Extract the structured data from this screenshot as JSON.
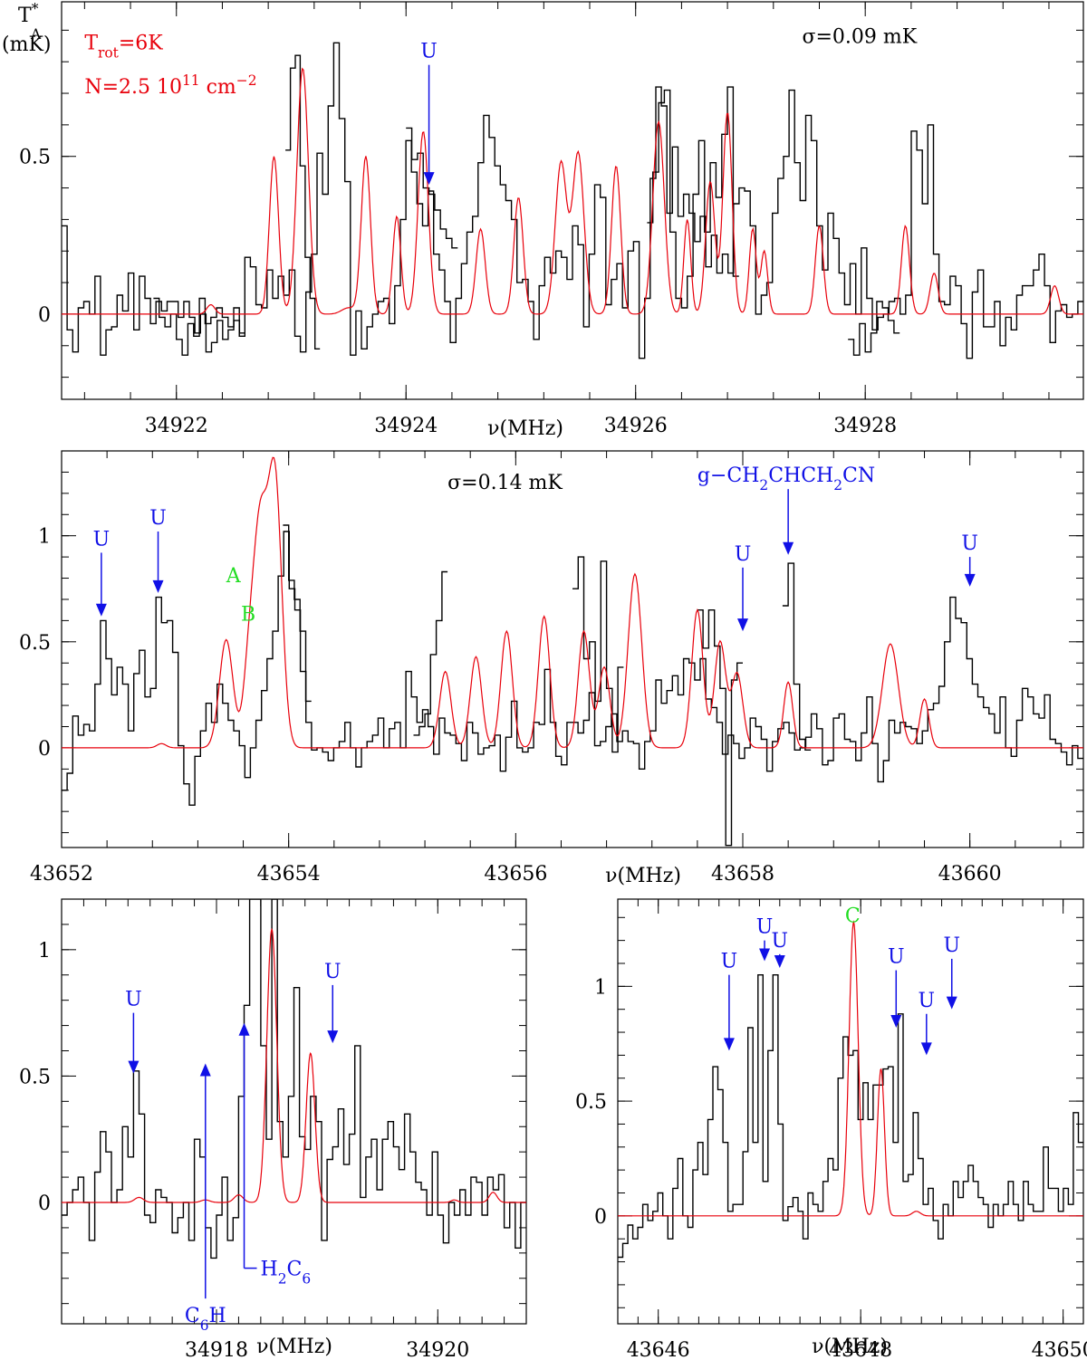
{
  "colors": {
    "observed": "#000000",
    "model": "#e8000b",
    "annotation_blue": "#1010e6",
    "annotation_green": "#22dd22"
  },
  "chart_data": [
    {
      "id": "p1",
      "type": "line",
      "xlim": [
        34921.0,
        34929.9
      ],
      "ylim": [
        -0.27,
        0.99
      ],
      "xticks": [
        34922,
        34924,
        34926,
        34928
      ],
      "yticks": [
        0,
        0.5
      ],
      "minor_xstep": 0.4,
      "minor_ystep": 0.1,
      "xlabel": "ν(MHz)",
      "ylabel": [
        "T",
        "*",
        "A",
        "(mK)"
      ],
      "texts": [
        {
          "text": "σ=0.09  mK",
          "x": 34927.45,
          "y": 0.86,
          "color": "black"
        },
        {
          "text": "T",
          "sub": "rot",
          "after": "=6K",
          "x": 34921.2,
          "y": 0.84,
          "color": "red"
        },
        {
          "text": "N=2.5  10",
          "sup": "11",
          "after": "  cm",
          "sup2": "−2",
          "x": 34921.2,
          "y": 0.7,
          "color": "red"
        }
      ],
      "arrows": [
        {
          "label": "U",
          "x": 34924.2,
          "y_tip": 0.41,
          "y_top": 0.79
        }
      ],
      "model_lines": [
        [
          34922.3,
          0.03,
          0.035
        ],
        [
          34922.85,
          0.5,
          0.04
        ],
        [
          34923.1,
          0.78,
          0.05
        ],
        [
          34923.5,
          0.02,
          0.06
        ],
        [
          34923.65,
          0.5,
          0.04
        ],
        [
          34923.92,
          0.31,
          0.035
        ],
        [
          34924.15,
          0.58,
          0.045
        ],
        [
          34924.65,
          0.27,
          0.04
        ],
        [
          34924.98,
          0.37,
          0.04
        ],
        [
          34925.35,
          0.48,
          0.05
        ],
        [
          34925.5,
          0.51,
          0.05
        ],
        [
          34925.83,
          0.47,
          0.04
        ],
        [
          34926.2,
          0.61,
          0.05
        ],
        [
          34926.45,
          0.3,
          0.03
        ],
        [
          34926.65,
          0.42,
          0.04
        ],
        [
          34926.8,
          0.64,
          0.04
        ],
        [
          34927.02,
          0.27,
          0.03
        ],
        [
          34927.12,
          0.2,
          0.03
        ],
        [
          34927.6,
          0.28,
          0.035
        ],
        [
          34928.35,
          0.28,
          0.035
        ],
        [
          34928.6,
          0.13,
          0.035
        ],
        [
          34929.65,
          0.09,
          0.035
        ]
      ],
      "obs_step": 0.05,
      "obs_bins": [
        0.28,
        -0.05,
        -0.12,
        0.02,
        0.04,
        0.0,
        0.12,
        -0.13,
        -0.05,
        -0.04,
        0.06,
        0.01,
        0.13,
        -0.05,
        0.12,
        0.05,
        -0.03,
        0.04,
        0.01,
        0.04,
        0.04,
        -0.01,
        0.04,
        -0.01,
        -0.06,
        0.0,
        -0.12,
        -0.09,
        -0.02,
        -0.08,
        -0.05,
        0.02,
        -0.07,
        0.18,
        0.15,
        0.03,
        0.02,
        0.14,
        0.05,
        0.12,
        0.06,
        0.14,
        -0.07,
        -0.12,
        0.07,
        0.19,
        0.51,
        0.38,
        0.66,
        0.86,
        0.62,
        0.42,
        -0.13,
        0.01,
        -0.11,
        -0.04,
        0.0,
        0.04,
        0.05,
        -0.03,
        0.09,
        0.3,
        0.55,
        0.45,
        0.35,
        0.28,
        0.39,
        0.19,
        0.14,
        0.04,
        -0.09,
        0.05,
        0.16,
        0.26,
        0.31,
        0.48,
        0.63,
        0.56,
        0.47,
        0.41,
        0.36,
        0.3,
        0.1,
        0.11,
        0.04,
        -0.08,
        0.09,
        0.18,
        0.13,
        0.2,
        0.18,
        0.11,
        0.28,
        0.22,
        -0.04,
        0.19,
        0.41,
        0.37,
        0.03,
        0.11,
        0.16,
        0.02,
        0.2,
        0.23,
        -0.14,
        0.05,
        0.43,
        0.72,
        0.66,
        0.32,
        0.53,
        0.31,
        0.38,
        0.32,
        0.23,
        0.31,
        0.15,
        0.25,
        0.13,
        0.19,
        0.13,
        0.35,
        0.4,
        0.39,
        0.28,
        0.0,
        0.06,
        0.1,
        0.32,
        0.43,
        0.5,
        0.71,
        0.48,
        0.36,
        0.63,
        0.55,
        0.28,
        0.14,
        0.32,
        0.24,
        0.13,
        0.03,
        0.16,
        0.0,
        0.21,
        0.05,
        -0.05,
        -0.01,
        0.0,
        0.04,
        0.05,
        0.0,
        0.06,
        0.58,
        0.52,
        0.35,
        0.6,
        0.19,
        0.04,
        0.03,
        0.12,
        0.09,
        -0.03,
        -0.14,
        0.07,
        0.14,
        -0.04,
        -0.04,
        0.04,
        -0.1,
        -0.01,
        -0.05,
        0.06,
        0.09,
        0.09,
        0.14,
        0.19,
        0.09,
        -0.09,
        0.01,
        0.03,
        -0.01,
        0.0,
        0.04
      ],
      "obs_segments": [
        {
          "x0": 34921.8,
          "x1": 34922.6,
          "values": [
            0.05,
            -0.01,
            -0.04,
            0.0,
            -0.08,
            -0.13,
            -0.03,
            -0.07,
            0.05,
            -0.03,
            -0.01,
            0.02,
            -0.01,
            -0.04,
            -0.02,
            -0.06
          ]
        },
        {
          "x0": 34922.95,
          "x1": 34923.25,
          "values": [
            0.52,
            0.78,
            0.82,
            0.47,
            0.18,
            0.05,
            -0.11
          ]
        },
        {
          "x0": 34924.0,
          "x1": 34924.45,
          "values": [
            0.59,
            0.49,
            0.51,
            0.4,
            0.38,
            0.33,
            0.27,
            0.24,
            0.21
          ]
        },
        {
          "x0": 34926.1,
          "x1": 34926.9,
          "values": [
            0.29,
            0.45,
            0.67,
            0.71,
            0.26,
            0.05,
            0.02,
            0.12,
            0.38,
            0.55,
            0.26,
            0.48,
            0.37,
            0.57,
            0.72,
            0.12
          ]
        },
        {
          "x0": 34927.85,
          "x1": 34928.3,
          "values": [
            -0.08,
            -0.13,
            -0.03,
            -0.12,
            -0.06,
            0.04,
            0.02,
            -0.02,
            -0.06
          ]
        }
      ]
    },
    {
      "id": "p2",
      "type": "line",
      "xlim": [
        43652.0,
        43661.0
      ],
      "ylim": [
        -0.47,
        1.4
      ],
      "xticks": [
        43652,
        43654,
        43656,
        43658,
        43660
      ],
      "yticks": [
        0,
        0.5,
        1
      ],
      "minor_xstep": 0.4,
      "minor_ystep": 0.1,
      "xlabel": "ν(MHz)",
      "texts": [
        {
          "text": "σ=0.14  mK",
          "x": 43655.4,
          "y": 1.22,
          "color": "black"
        },
        {
          "text": "A",
          "x": 43653.45,
          "y": 0.78,
          "color": "green"
        },
        {
          "text": "B",
          "x": 43653.58,
          "y": 0.6,
          "color": "green"
        }
      ],
      "arrows": [
        {
          "label": "U",
          "x": 43652.35,
          "y_tip": 0.62,
          "y_top": 0.92
        },
        {
          "label": "U",
          "x": 43652.85,
          "y_tip": 0.73,
          "y_top": 1.02
        },
        {
          "label": "U",
          "x": 43658.0,
          "y_tip": 0.55,
          "y_top": 0.85
        },
        {
          "label": "U",
          "x": 43660.0,
          "y_tip": 0.76,
          "y_top": 0.9
        },
        {
          "label": "g−CH",
          "sub": "2",
          "after": "CHCH",
          "sub2": "2",
          "after2": "CN",
          "x": 43658.4,
          "y_tip": 0.91,
          "y_top": 1.22,
          "label_x": 43657.6
        }
      ],
      "model_lines": [
        [
          43652.88,
          0.02,
          0.04
        ],
        [
          43653.45,
          0.51,
          0.06
        ],
        [
          43653.65,
          0.35,
          0.05
        ],
        [
          43653.75,
          1.0,
          0.06
        ],
        [
          43653.88,
          1.25,
          0.06
        ],
        [
          43655.38,
          0.36,
          0.05
        ],
        [
          43655.65,
          0.43,
          0.05
        ],
        [
          43655.92,
          0.55,
          0.05
        ],
        [
          43656.25,
          0.62,
          0.05
        ],
        [
          43656.6,
          0.55,
          0.05
        ],
        [
          43656.78,
          0.38,
          0.05
        ],
        [
          43657.05,
          0.82,
          0.06
        ],
        [
          43657.6,
          0.65,
          0.05
        ],
        [
          43657.8,
          0.5,
          0.05
        ],
        [
          43657.95,
          0.35,
          0.05
        ],
        [
          43658.4,
          0.31,
          0.04
        ],
        [
          43659.3,
          0.49,
          0.07
        ],
        [
          43659.6,
          0.23,
          0.04
        ]
      ],
      "obs_step": 0.05,
      "obs_bins": [
        -0.2,
        -0.12,
        0.15,
        0.06,
        0.11,
        0.08,
        0.3,
        0.6,
        0.42,
        0.25,
        0.38,
        0.3,
        0.08,
        0.35,
        0.46,
        0.24,
        0.28,
        0.71,
        0.59,
        0.6,
        0.45,
        0.01,
        -0.17,
        -0.27,
        -0.04,
        0.08,
        0.21,
        0.12,
        0.3,
        0.21,
        0.13,
        0.08,
        0.01,
        -0.14,
        0.0,
        0.13,
        0.27,
        0.42,
        0.55,
        0.81,
        1.02,
        0.75,
        0.65,
        0.36,
        0.12,
        -0.01,
        0.0,
        -0.02,
        -0.06,
        0.0,
        0.03,
        0.12,
        0.0,
        -0.09,
        0.0,
        0.03,
        0.06,
        0.14,
        0.0,
        0.09,
        0.12,
        0.0,
        0.36,
        0.24,
        0.12,
        0.18,
        0.1,
        -0.03,
        0.14,
        0.07,
        0.06,
        0.02,
        -0.06,
        0.12,
        0.07,
        -0.03,
        0.0,
        0.01,
        0.06,
        -0.11,
        0.05,
        0.22,
        0.0,
        -0.02,
        0.0,
        0.12,
        0.11,
        0.37,
        0.12,
        -0.04,
        -0.08,
        0.12,
        0.12,
        0.07,
        0.13,
        0.26,
        0.01,
        0.03,
        0.1,
        0.16,
        0.03,
        0.08,
        0.03,
        0.02,
        -0.1,
        0.03,
        0.08,
        0.32,
        0.21,
        0.27,
        0.34,
        0.25,
        0.42,
        0.4,
        0.32,
        0.42,
        0.23,
        0.19,
        0.12,
        -0.03,
        0.06,
        0.02,
        -0.05,
        0.0,
        0.14,
        0.1,
        0.04,
        -0.11,
        0.03,
        0.09,
        0.12,
        0.07,
        -0.01,
        0.0,
        0.05,
        0.16,
        0.09,
        -0.08,
        -0.06,
        0.14,
        0.16,
        0.04,
        0.03,
        -0.06,
        0.07,
        0.24,
        0.02,
        -0.16,
        -0.06,
        0.13,
        0.07,
        0.12,
        0.1,
        0.09,
        0.02,
        0.08,
        0.18,
        0.21,
        0.29,
        0.5,
        0.71,
        0.61,
        0.59,
        0.42,
        0.3,
        0.24,
        0.19,
        0.16,
        0.07,
        0.24,
        0.0,
        -0.04,
        0.13,
        0.28,
        0.24,
        0.16,
        0.14,
        0.25,
        0.04,
        0.02,
        -0.02,
        -0.08,
        0.01,
        -0.05
      ],
      "obs_segments": [
        {
          "x0": 43653.95,
          "x1": 43654.2,
          "values": [
            1.05,
            0.79,
            0.7,
            0.55,
            0.22
          ]
        },
        {
          "x0": 43655.1,
          "x1": 43655.4,
          "values": [
            0.06,
            0.1,
            0.16,
            0.44,
            0.6,
            0.83
          ]
        },
        {
          "x0": 43656.5,
          "x1": 43656.95,
          "values": [
            0.75,
            0.9,
            0.42,
            0.5,
            0.22,
            0.88,
            0.28,
            -0.02,
            0.38
          ]
        },
        {
          "x0": 43657.6,
          "x1": 43658.0,
          "values": [
            0.65,
            0.47,
            0.65,
            0.48,
            0.28,
            -0.46,
            0.32,
            0.4
          ]
        },
        {
          "x0": 43658.35,
          "x1": 43658.6,
          "values": [
            0.67,
            0.87,
            0.3,
            0.04,
            -0.01
          ]
        }
      ]
    },
    {
      "id": "p3",
      "type": "line",
      "xlim": [
        34916.6,
        34920.8
      ],
      "ylim": [
        -0.48,
        1.2
      ],
      "xticks": [
        34918,
        34920
      ],
      "yticks": [
        0,
        0.5,
        1
      ],
      "minor_xstep": 0.2,
      "minor_ystep": 0.1,
      "xlabel": "ν(MHz)",
      "arrows": [
        {
          "label": "U",
          "x": 34917.25,
          "y_tip": 0.51,
          "y_top": 0.75
        },
        {
          "label": "U",
          "x": 34919.05,
          "y_tip": 0.63,
          "y_top": 0.86
        }
      ],
      "up_arrows": [
        {
          "label": "C",
          "sub": "6",
          "after": "H",
          "x": 34917.9,
          "y_base": -0.38,
          "y_tip": 0.55,
          "label_dx": -18,
          "label_dy": 26
        },
        {
          "label": "H",
          "sub": "2",
          "after": "C",
          "sub2": "6",
          "x": 34918.25,
          "y_base": -0.26,
          "y_tip": 0.71,
          "label_dx": 18,
          "label_dy": 8
        }
      ],
      "model_lines": [
        [
          34917.3,
          0.02,
          0.04
        ],
        [
          34917.9,
          0.01,
          0.04
        ],
        [
          34918.2,
          0.03,
          0.04
        ],
        [
          34918.5,
          1.08,
          0.045
        ],
        [
          34918.85,
          0.59,
          0.04
        ],
        [
          34920.15,
          0.01,
          0.03
        ],
        [
          34920.5,
          0.04,
          0.035
        ]
      ],
      "obs_step": 0.05,
      "obs_bins": [
        -0.05,
        0.0,
        0.05,
        0.1,
        0.0,
        -0.15,
        0.12,
        0.28,
        0.2,
        0.0,
        0.05,
        0.3,
        0.18,
        0.52,
        0.35,
        -0.05,
        -0.08,
        0.05,
        0.02,
        0.0,
        -0.12,
        -0.06,
        0.0,
        -0.15,
        0.25,
        0.18,
        -0.1,
        -0.22,
        -0.05,
        0.1,
        -0.15,
        -0.06,
        0.42,
        0.78,
        1.2,
        1.2,
        0.62,
        0.25,
        1.2,
        0.32,
        0.18,
        0.42,
        0.85,
        0.26,
        0.21,
        0.42,
        0.32,
        -0.15,
        0.17,
        0.22,
        0.37,
        0.15,
        0.27,
        0.62,
        0.02,
        0.18,
        0.25,
        0.05,
        0.25,
        0.32,
        0.22,
        0.13,
        0.35,
        0.2,
        0.08,
        0.05,
        -0.05,
        0.2,
        -0.05,
        -0.16,
        0.0,
        -0.05,
        0.05,
        -0.05,
        0.1,
        0.08,
        -0.05,
        0.1,
        0.05,
        0.11,
        -0.1,
        0.0,
        -0.18,
        0.0
      ]
    },
    {
      "id": "p4",
      "type": "line",
      "xlim": [
        43645.6,
        43650.2
      ],
      "ylim": [
        -0.47,
        1.38
      ],
      "xticks": [
        43646,
        43648,
        43650
      ],
      "yticks": [
        0,
        0.5,
        1
      ],
      "minor_xstep": 0.2,
      "minor_ystep": 0.1,
      "xlabel": "ν(MHz)",
      "texts": [
        {
          "text": "C",
          "x": 43647.92,
          "y": 1.28,
          "color": "green",
          "anchor": "middle"
        }
      ],
      "arrows": [
        {
          "label": "U",
          "x": 43646.7,
          "y_tip": 0.72,
          "y_top": 1.05
        },
        {
          "label": "U",
          "x": 43647.05,
          "y_tip": 1.11,
          "y_top": 1.2
        },
        {
          "label": "U",
          "x": 43647.2,
          "y_tip": 1.08,
          "y_top": 1.14
        },
        {
          "label": "U",
          "x": 43648.35,
          "y_tip": 0.82,
          "y_top": 1.07
        },
        {
          "label": "U",
          "x": 43648.65,
          "y_tip": 0.7,
          "y_top": 0.88
        },
        {
          "label": "U",
          "x": 43648.9,
          "y_tip": 0.9,
          "y_top": 1.12
        }
      ],
      "model_lines": [
        [
          43647.93,
          1.28,
          0.045
        ],
        [
          43648.2,
          0.64,
          0.035
        ],
        [
          43648.55,
          0.02,
          0.04
        ]
      ],
      "obs_step": 0.05,
      "obs_bins": [
        -0.18,
        -0.12,
        -0.04,
        -0.1,
        -0.05,
        0.05,
        -0.02,
        0.02,
        0.1,
        0.0,
        -0.1,
        0.12,
        0.25,
        0.0,
        -0.05,
        0.2,
        0.32,
        0.18,
        0.42,
        0.65,
        0.55,
        0.32,
        0.02,
        0.05,
        0.05,
        0.28,
        0.82,
        0.32,
        1.05,
        0.15,
        0.72,
        1.05,
        0.4,
        -0.02,
        0.04,
        0.08,
        0.02,
        -0.1,
        0.1,
        0.05,
        0.02,
        0.15,
        0.25,
        0.2,
        0.6,
        0.78,
        0.7,
        0.72,
        0.42,
        0.58,
        0.42,
        0.57,
        0.57,
        0.64,
        0.65,
        0.32,
        0.88,
        0.15,
        0.18,
        0.45,
        0.25,
        0.05,
        0.12,
        -0.02,
        -0.1,
        0.05,
        0.0,
        0.15,
        0.08,
        0.15,
        0.22,
        0.15,
        0.08,
        0.05,
        -0.05,
        0.05,
        0.0,
        0.05,
        0.15,
        0.05,
        -0.02,
        0.15,
        0.05,
        0.02,
        0.02,
        0.3,
        0.12,
        0.12,
        0.02,
        0.12,
        0.05,
        0.45,
        0.32
      ]
    }
  ]
}
